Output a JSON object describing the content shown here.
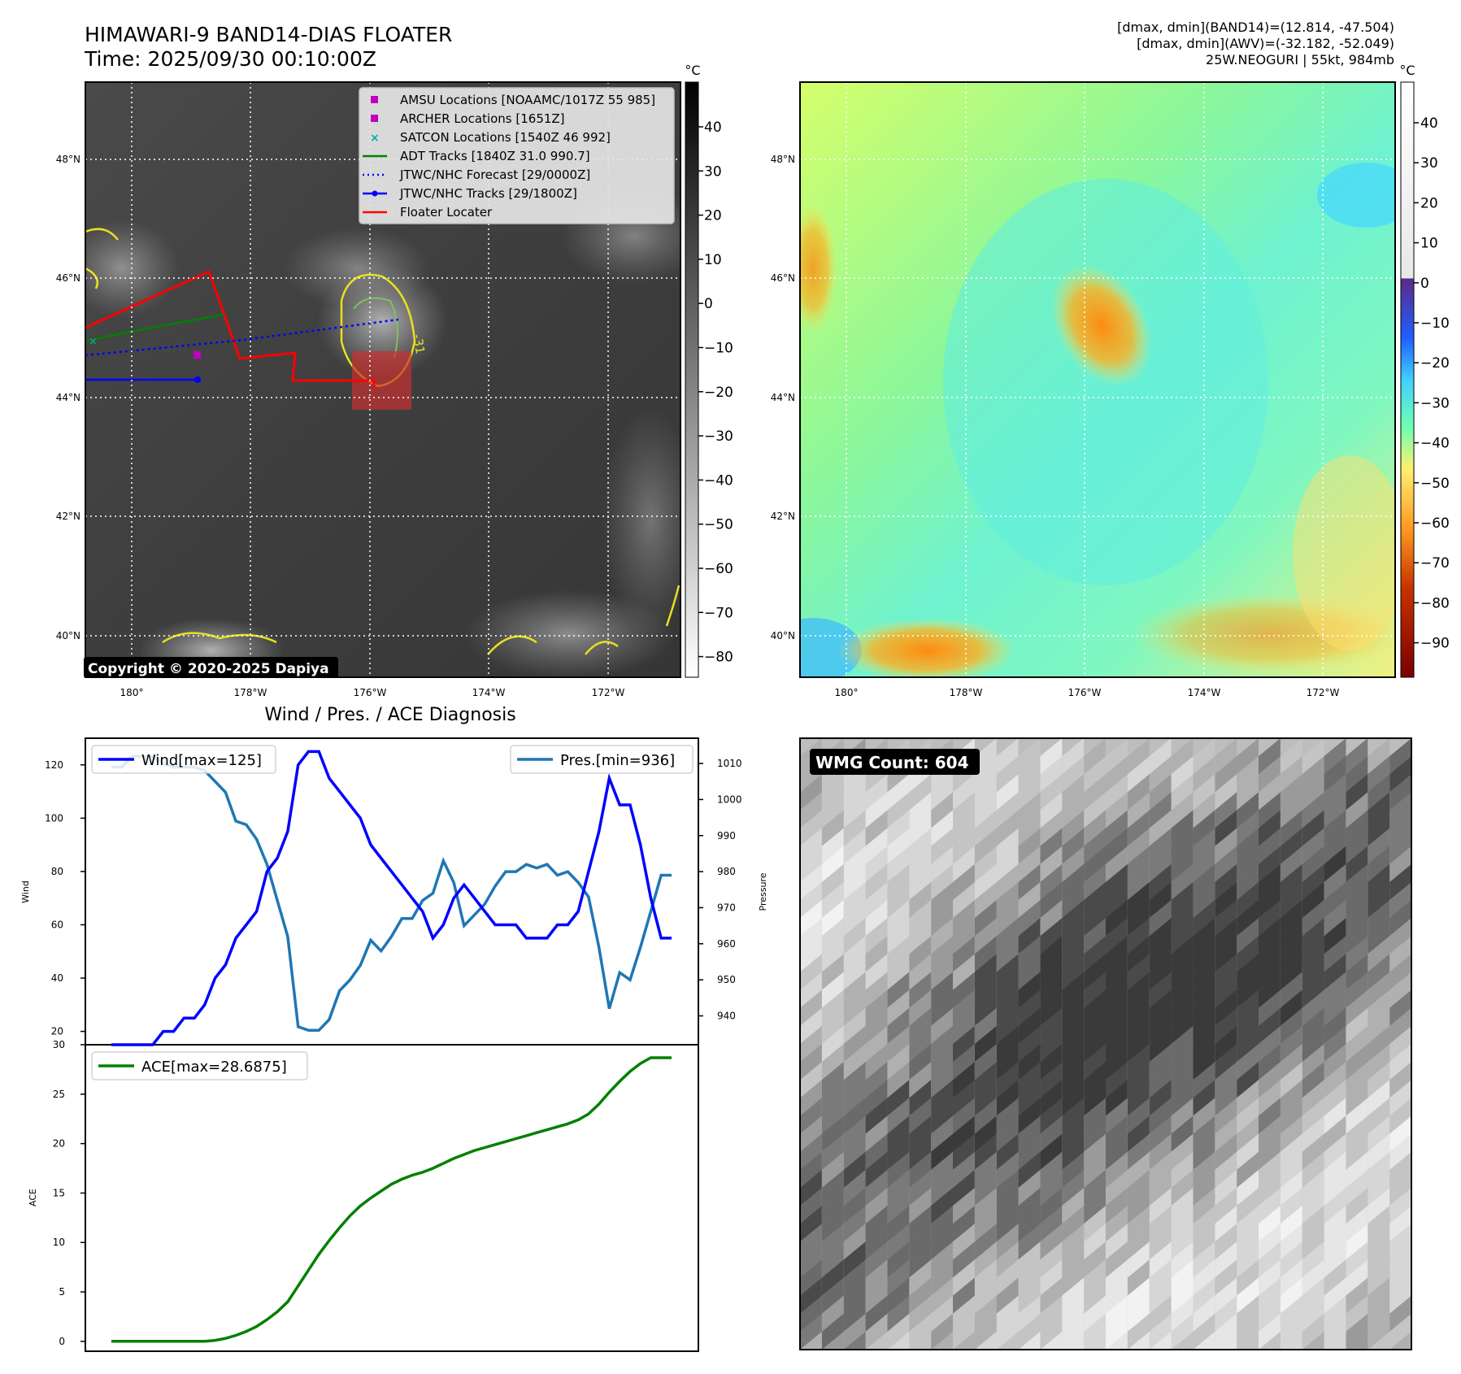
{
  "header": {
    "title_line1": "HIMAWARI-9 BAND14-DIAS FLOATER",
    "title_line2": "Time: 2025/09/30 00:10:00Z",
    "info_line1": "[dmax, dmin](BAND14)=(12.814, -47.504)",
    "info_line2": "[dmax, dmin](AWV)=(-32.182, -52.049)",
    "info_line3": "25W.NEOGURI | 55kt, 984mb"
  },
  "map": {
    "lat_labels": [
      "48°N",
      "46°N",
      "44°N",
      "42°N",
      "40°N"
    ],
    "lon_labels": [
      "180°",
      "178°W",
      "176°W",
      "174°W",
      "172°W"
    ],
    "contour_label": "-31",
    "copyright": "Copyright © 2020-2025 Dapiya"
  },
  "legend": {
    "items": [
      {
        "label": "AMSU Locations [NOAAMC/1017Z 55 985]",
        "color": "#c000c0",
        "kind": "square"
      },
      {
        "label": "ARCHER Locations [1651Z]",
        "color": "#c000c0",
        "kind": "square"
      },
      {
        "label": "SATCON Locations [1540Z 46 992]",
        "color": "#00b0b0",
        "kind": "x"
      },
      {
        "label": "ADT Tracks [1840Z 31.0 990.7]",
        "color": "#008000",
        "kind": "line"
      },
      {
        "label": "JTWC/NHC Forecast [29/0000Z]",
        "color": "#0000ff",
        "kind": "dotted"
      },
      {
        "label": "JTWC/NHC Tracks [29/1800Z]",
        "color": "#0000ff",
        "kind": "line-dot"
      },
      {
        "label": "Floater Locater",
        "color": "#ff0000",
        "kind": "line"
      }
    ]
  },
  "colorbar_gray": {
    "unit": "°C",
    "ticks": [
      "40",
      "30",
      "20",
      "10",
      "0",
      "−10",
      "−20",
      "−30",
      "−40",
      "−50",
      "−60",
      "−70",
      "−80"
    ]
  },
  "colorbar_color": {
    "unit": "°C",
    "ticks": [
      "40",
      "30",
      "20",
      "10",
      "0",
      "−10",
      "−20",
      "−30",
      "−40",
      "−50",
      "−60",
      "−70",
      "−80",
      "−90"
    ]
  },
  "wmg": {
    "label": "WMG Count: 604"
  },
  "colors": {
    "wind": "#0000ff",
    "pressure": "#1f77b4",
    "ace": "#008000",
    "floater": "#ff0000"
  },
  "chart_data": [
    {
      "type": "line",
      "title": "Wind / Pres. / ACE Diagnosis",
      "xlabel": "",
      "ylabel": "Wind",
      "y2label": "Pressure",
      "ylim": [
        15,
        130
      ],
      "y2lim": [
        932,
        1017
      ],
      "yticks": [
        "20",
        "40",
        "60",
        "80",
        "100",
        "120"
      ],
      "y2ticks": [
        "940",
        "950",
        "960",
        "970",
        "980",
        "990",
        "1000",
        "1010"
      ],
      "series": [
        {
          "name": "Wind[max=125]",
          "values": [
            15,
            15,
            15,
            15,
            15,
            20,
            20,
            25,
            25,
            30,
            40,
            45,
            55,
            60,
            65,
            80,
            85,
            95,
            120,
            125,
            125,
            115,
            110,
            105,
            100,
            90,
            85,
            80,
            75,
            70,
            65,
            55,
            60,
            70,
            75,
            70,
            65,
            60,
            60,
            60,
            55,
            55,
            55,
            60,
            60,
            65,
            80,
            95,
            115,
            105,
            105,
            90,
            70,
            55,
            55
          ]
        },
        {
          "name": "Pres.[min=936]",
          "values": [
            1009,
            1009,
            1012,
            1012,
            1012,
            1010,
            1009,
            1009,
            1009,
            1008,
            1005,
            1002,
            994,
            993,
            989,
            982,
            972,
            962,
            937,
            936,
            936,
            939,
            947,
            950,
            954,
            961,
            958,
            962,
            967,
            967,
            972,
            974,
            983,
            977,
            965,
            968,
            971,
            976,
            980,
            980,
            982,
            981,
            982,
            979,
            980,
            977,
            973,
            959,
            942,
            952,
            950,
            959,
            969,
            979,
            979
          ]
        }
      ]
    },
    {
      "type": "area",
      "title": "",
      "xlabel": "",
      "ylabel": "ACE",
      "ylim": [
        -1,
        30
      ],
      "yticks": [
        "0",
        "5",
        "10",
        "15",
        "20",
        "25",
        "30"
      ],
      "series": [
        {
          "name": "ACE[max=28.6875]",
          "values": [
            0,
            0,
            0,
            0,
            0,
            0,
            0,
            0,
            0,
            0,
            0.1,
            0.3,
            0.6,
            1,
            1.5,
            2.2,
            3,
            4,
            5.6,
            7.2,
            8.8,
            10.2,
            11.5,
            12.7,
            13.7,
            14.5,
            15.2,
            15.9,
            16.4,
            16.8,
            17.1,
            17.5,
            18,
            18.5,
            18.9,
            19.3,
            19.6,
            19.9,
            20.2,
            20.5,
            20.8,
            21.1,
            21.4,
            21.7,
            22,
            22.4,
            23,
            24,
            25.2,
            26.3,
            27.3,
            28.1,
            28.6875,
            28.6875,
            28.6875
          ]
        }
      ]
    }
  ]
}
